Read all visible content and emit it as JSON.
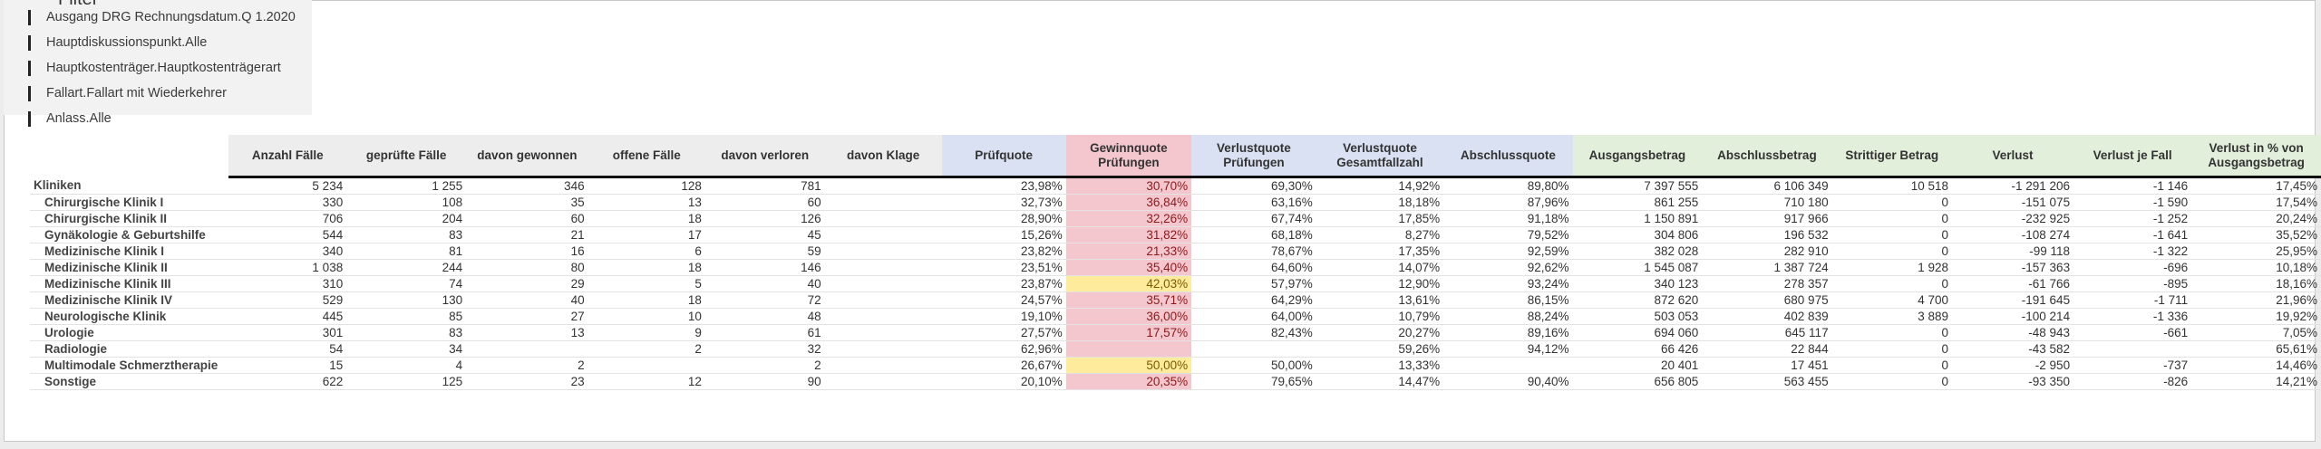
{
  "filter": {
    "title": "Filter",
    "items": [
      "Ausgang DRG Rechnungsdatum.Q 1.2020",
      "Hauptdiskussionspunkt.Alle",
      "Hauptkostenträger.Hauptkostenträgerart",
      "Fallart.Fallart mit Wiederkehrer",
      "Anlass.Alle"
    ]
  },
  "table": {
    "headers": [
      "Anzahl Fälle",
      "geprüfte Fälle",
      "davon gewonnen",
      "offene Fälle",
      "davon verloren",
      "davon Klage",
      "Prüfquote",
      "Gewinnquote Prüfungen",
      "Verlustquote Prüfungen",
      "Verlustquote Gesamtfallzahl",
      "Abschlussquote",
      "Ausgangsbetrag",
      "Abschlussbetrag",
      "Strittiger Betrag",
      "Verlust",
      "Verlust je Fall",
      "Verlust in % von Ausgangsbetrag"
    ],
    "colors": {
      "gray": "#ededed",
      "blue": "#d9e1f2",
      "pink": "#f4c7cf",
      "green": "#e2efda",
      "red_cell": "#f4c6cd",
      "yellow_cell": "#ffeb9c"
    },
    "rows": [
      {
        "name": "Kliniken",
        "values": [
          "5 234",
          "1 255",
          "346",
          "128",
          "781",
          "",
          "23,98%",
          "30,70%",
          "69,30%",
          "14,92%",
          "89,80%",
          "7 397 555",
          "6 106 349",
          "10 518",
          "-1 291 206",
          "-1 146",
          "17,45%"
        ],
        "highlight": "red"
      },
      {
        "name": "Chirurgische Klinik I",
        "values": [
          "330",
          "108",
          "35",
          "13",
          "60",
          "",
          "32,73%",
          "36,84%",
          "63,16%",
          "18,18%",
          "87,96%",
          "861 255",
          "710 180",
          "0",
          "-151 075",
          "-1 590",
          "17,54%"
        ],
        "highlight": "red"
      },
      {
        "name": "Chirurgische Klinik II",
        "values": [
          "706",
          "204",
          "60",
          "18",
          "126",
          "",
          "28,90%",
          "32,26%",
          "67,74%",
          "17,85%",
          "91,18%",
          "1 150 891",
          "917 966",
          "0",
          "-232 925",
          "-1 252",
          "20,24%"
        ],
        "highlight": "red"
      },
      {
        "name": "Gynäkologie & Geburtshilfe",
        "values": [
          "544",
          "83",
          "21",
          "17",
          "45",
          "",
          "15,26%",
          "31,82%",
          "68,18%",
          "8,27%",
          "79,52%",
          "304 806",
          "196 532",
          "0",
          "-108 274",
          "-1 641",
          "35,52%"
        ],
        "highlight": "red"
      },
      {
        "name": "Medizinische Klinik I",
        "values": [
          "340",
          "81",
          "16",
          "6",
          "59",
          "",
          "23,82%",
          "21,33%",
          "78,67%",
          "17,35%",
          "92,59%",
          "382 028",
          "282 910",
          "0",
          "-99 118",
          "-1 322",
          "25,95%"
        ],
        "highlight": "red"
      },
      {
        "name": "Medizinische Klinik II",
        "values": [
          "1 038",
          "244",
          "80",
          "18",
          "146",
          "",
          "23,51%",
          "35,40%",
          "64,60%",
          "14,07%",
          "92,62%",
          "1 545 087",
          "1 387 724",
          "1 928",
          "-157 363",
          "-696",
          "10,18%"
        ],
        "highlight": "red"
      },
      {
        "name": "Medizinische Klinik III",
        "values": [
          "310",
          "74",
          "29",
          "5",
          "40",
          "",
          "23,87%",
          "42,03%",
          "57,97%",
          "12,90%",
          "93,24%",
          "340 123",
          "278 357",
          "0",
          "-61 766",
          "-895",
          "18,16%"
        ],
        "highlight": "yellow"
      },
      {
        "name": "Medizinische Klinik IV",
        "values": [
          "529",
          "130",
          "40",
          "18",
          "72",
          "",
          "24,57%",
          "35,71%",
          "64,29%",
          "13,61%",
          "86,15%",
          "872 620",
          "680 975",
          "4 700",
          "-191 645",
          "-1 711",
          "21,96%"
        ],
        "highlight": "red"
      },
      {
        "name": "Neurologische Klinik",
        "values": [
          "445",
          "85",
          "27",
          "10",
          "48",
          "",
          "19,10%",
          "36,00%",
          "64,00%",
          "10,79%",
          "88,24%",
          "503 053",
          "402 839",
          "3 889",
          "-100 214",
          "-1 336",
          "19,92%"
        ],
        "highlight": "red"
      },
      {
        "name": "Urologie",
        "values": [
          "301",
          "83",
          "13",
          "9",
          "61",
          "",
          "27,57%",
          "17,57%",
          "82,43%",
          "20,27%",
          "89,16%",
          "694 060",
          "645 117",
          "0",
          "-48 943",
          "-661",
          "7,05%"
        ],
        "highlight": "red"
      },
      {
        "name": "Radiologie",
        "values": [
          "54",
          "34",
          "",
          "2",
          "32",
          "",
          "62,96%",
          "",
          "",
          "59,26%",
          "94,12%",
          "66 426",
          "22 844",
          "0",
          "-43 582",
          "",
          "65,61%"
        ],
        "highlight": "red"
      },
      {
        "name": "Multimodale Schmerztherapie",
        "values": [
          "15",
          "4",
          "2",
          "",
          "2",
          "",
          "26,67%",
          "50,00%",
          "50,00%",
          "13,33%",
          "",
          "20 401",
          "17 451",
          "0",
          "-2 950",
          "-737",
          "14,46%"
        ],
        "highlight": "yellow"
      },
      {
        "name": "Sonstige",
        "values": [
          "622",
          "125",
          "23",
          "12",
          "90",
          "",
          "20,10%",
          "20,35%",
          "79,65%",
          "14,47%",
          "90,40%",
          "656 805",
          "563 455",
          "0",
          "-93 350",
          "-826",
          "14,21%"
        ],
        "highlight": "red"
      }
    ]
  }
}
